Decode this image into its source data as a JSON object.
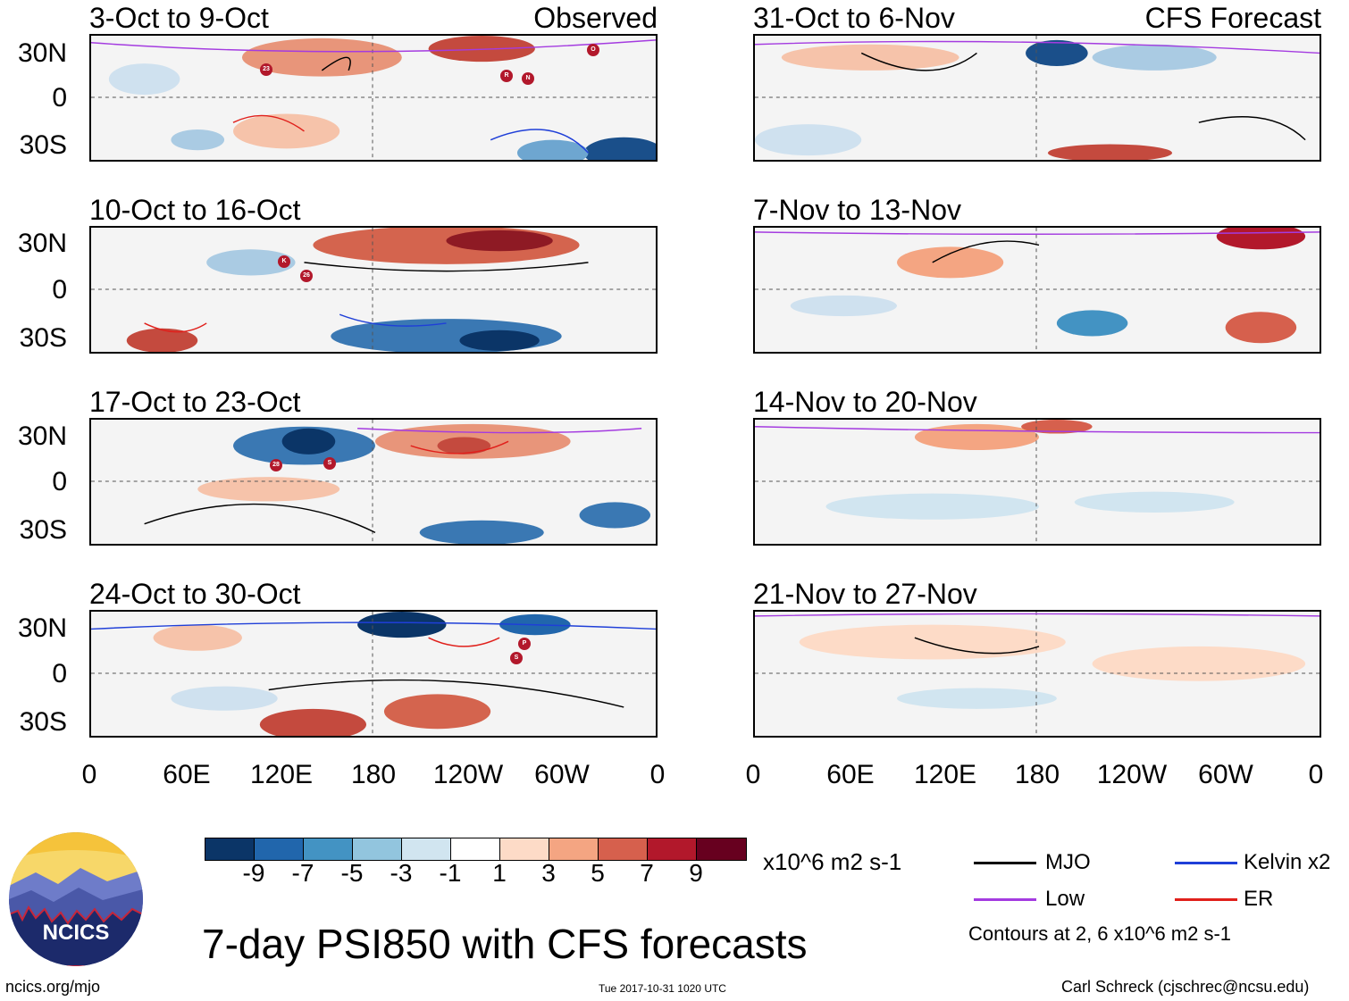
{
  "panels_left": [
    {
      "title": "3-Oct to 9-Oct",
      "tag": "Observed"
    },
    {
      "title": "10-Oct to 16-Oct",
      "tag": ""
    },
    {
      "title": "17-Oct to 23-Oct",
      "tag": ""
    },
    {
      "title": "24-Oct to 30-Oct",
      "tag": ""
    }
  ],
  "panels_right": [
    {
      "title": "31-Oct to 6-Nov",
      "tag": "CFS Forecast"
    },
    {
      "title": "7-Nov to 13-Nov",
      "tag": ""
    },
    {
      "title": "14-Nov to 20-Nov",
      "tag": ""
    },
    {
      "title": "21-Nov to 27-Nov",
      "tag": ""
    }
  ],
  "y_axis_labels": [
    "30N",
    "0",
    "30S"
  ],
  "x_axis_labels": [
    "0",
    "60E",
    "120E",
    "180",
    "120W",
    "60W",
    "0"
  ],
  "colorbar": {
    "colors": [
      "#0b3567",
      "#2166ac",
      "#4393c3",
      "#92c5de",
      "#d1e5f0",
      "#ffffff",
      "#fddbc7",
      "#f4a582",
      "#d6604d",
      "#b2182b",
      "#67001f"
    ],
    "ticks": [
      "-9",
      "-7",
      "-5",
      "-3",
      "-1",
      "1",
      "3",
      "5",
      "7",
      "9"
    ],
    "units": "x10^6 m2 s-1"
  },
  "legend": {
    "items": [
      {
        "label": "MJO",
        "color": "#000000"
      },
      {
        "label": "Kelvin x2",
        "color": "#1f3fd8"
      },
      {
        "label": "Low",
        "color": "#a43be0"
      },
      {
        "label": "ER",
        "color": "#e0201b"
      }
    ],
    "note": "Contours at 2, 6 x10^6 m2 s-1"
  },
  "title": "7-day PSI850 with CFS forecasts",
  "footer": {
    "left": "ncics.org/mjo",
    "center": "Tue 2017-10-31 1020 UTC",
    "right": "Carl Schreck (cjschrec@ncsu.edu)"
  },
  "logo": {
    "text": "NCICS"
  },
  "storm_markers": [
    {
      "panel": "left-1",
      "labels": [
        "23",
        "R",
        "N",
        "O"
      ]
    },
    {
      "panel": "left-2",
      "labels": [
        "K",
        "26"
      ]
    },
    {
      "panel": "left-3",
      "labels": [
        "28",
        "S"
      ]
    },
    {
      "panel": "left-4",
      "labels": [
        "P",
        "S"
      ]
    }
  ]
}
